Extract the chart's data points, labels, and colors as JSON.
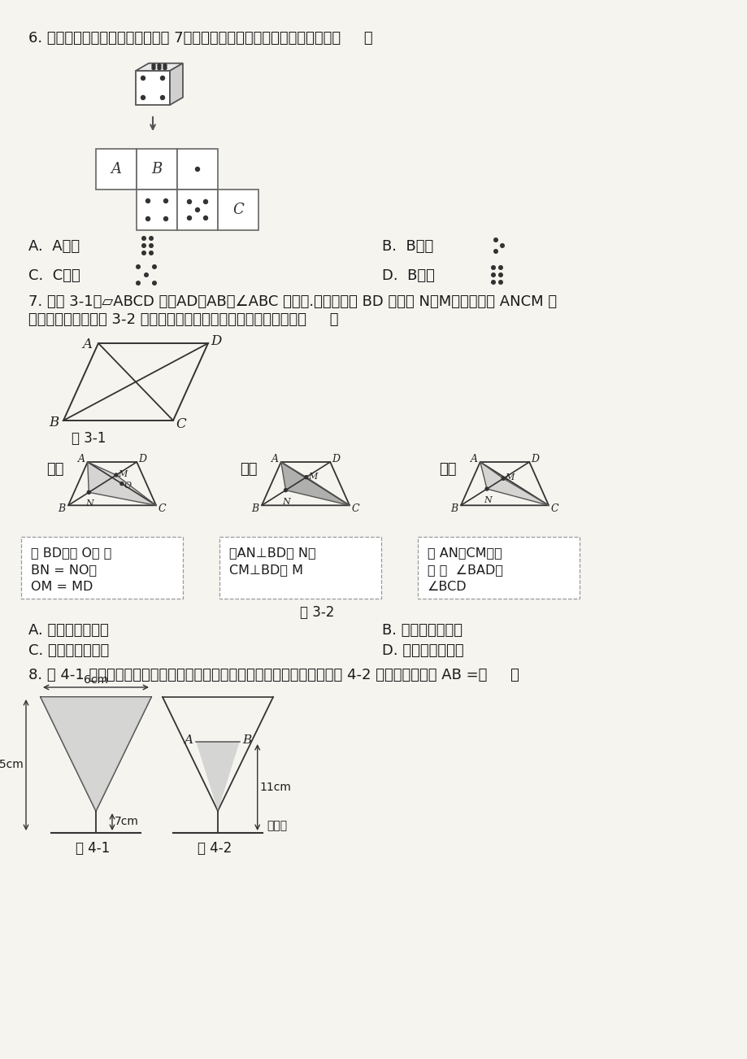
{
  "bg_color": "#f0ede8",
  "text_color": "#1a1a1a",
  "q6_text": "6. 一个骰子相对两面的点数之和为 7，它的展开图如图，下列判断正确的是（     ）",
  "q6_optA": "A．  A代表",
  "q6_optB": "B．  B代表",
  "q6_optC": "C．  C代表",
  "q6_optD": "D．  B代表",
  "q7_text1": "7. 如图 3-1，▱ABCD 中，AD＞AB，∠ABC 为锐角.要在对角线 BD 上找点 N，M，使四边形 ANCM 为",
  "q7_text2": "平行四边形，现有图 3-2 中的甲、乙、丙三种方案，则正确的方案（     ）",
  "fig31_label": "图 3-1",
  "fig32_label": "图 3-2",
  "q7_optA": "A. 甲、乙、丙都是",
  "q7_optB": "B. 只有甲、乙才是",
  "q7_optC": "C. 只有甲、丙才是",
  "q7_optD": "D. 只有乙、丙才是",
  "q8_text": "8. 图 4-1 是装了液体的高脚杯示意图（数据如图），用去一部分液体后如图 4-2 所示，此时液面 AB =（     ）",
  "fig41_label": "图 4-1",
  "fig42_label": "图 4-2",
  "jia_label": "甲：",
  "yi_label": "乙：",
  "bing_label": "丙：",
  "jia_text1": "取 BD中点 O， 作",
  "jia_text2": "BN = NO，",
  "jia_text3": "OM = MD",
  "yi_text1": "作AN⊥BD于 N，",
  "yi_text2": "CM⊥BD于 M",
  "bing_text1": "作 AN，CM分别",
  "bing_text2": "平 分  ∠BAD，",
  "bing_text3": "∠BCD"
}
